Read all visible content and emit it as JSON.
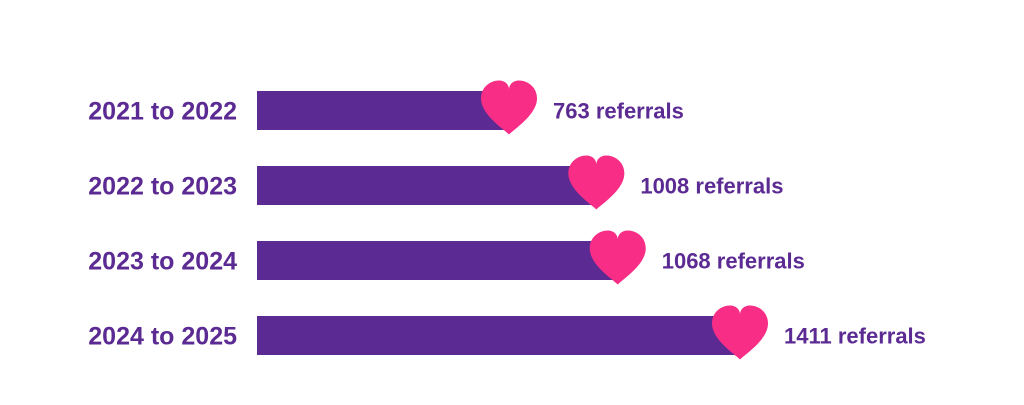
{
  "colors": {
    "bar": "#5b2a92",
    "heart": "#f72d86",
    "text": "#5b2a92",
    "background": "#ffffff"
  },
  "chart_data": {
    "type": "bar",
    "orientation": "horizontal",
    "categories": [
      "2021 to 2022",
      "2022 to 2023",
      "2023 to 2024",
      "2024 to 2025"
    ],
    "values": [
      763,
      1008,
      1068,
      1411
    ],
    "value_labels": [
      "763 referrals",
      "1008 referrals",
      "1068 referrals",
      "1411 referrals"
    ],
    "marker_icon": "heart-icon",
    "xlim": [
      0,
      1411
    ],
    "grid": false,
    "legend": "none"
  }
}
